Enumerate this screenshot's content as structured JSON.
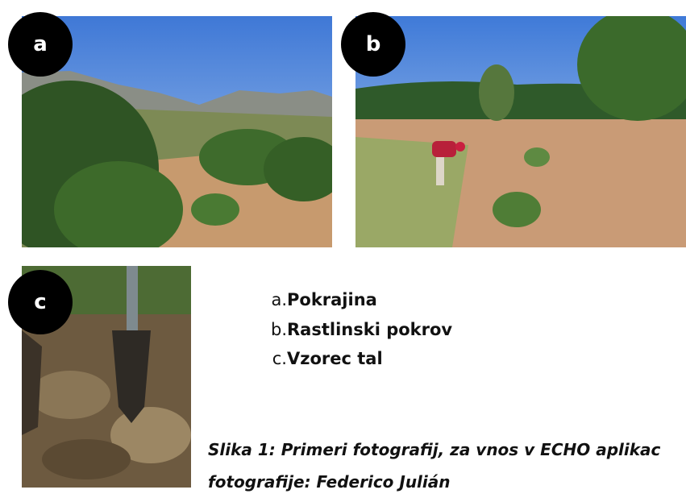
{
  "photos": [
    {
      "label": "a"
    },
    {
      "label": "b"
    },
    {
      "label": "c"
    }
  ],
  "list": [
    {
      "marker": "a.",
      "text": "Pokrajina"
    },
    {
      "marker": "b.",
      "text": "Rastlinski pokrov"
    },
    {
      "marker": "c.",
      "text": "Vzorec tal"
    }
  ],
  "caption": {
    "line1": "Slika 1: Primeri fotografij, za vnos v ECHO aplikac",
    "line2": "fotografije: Federico Julián"
  }
}
